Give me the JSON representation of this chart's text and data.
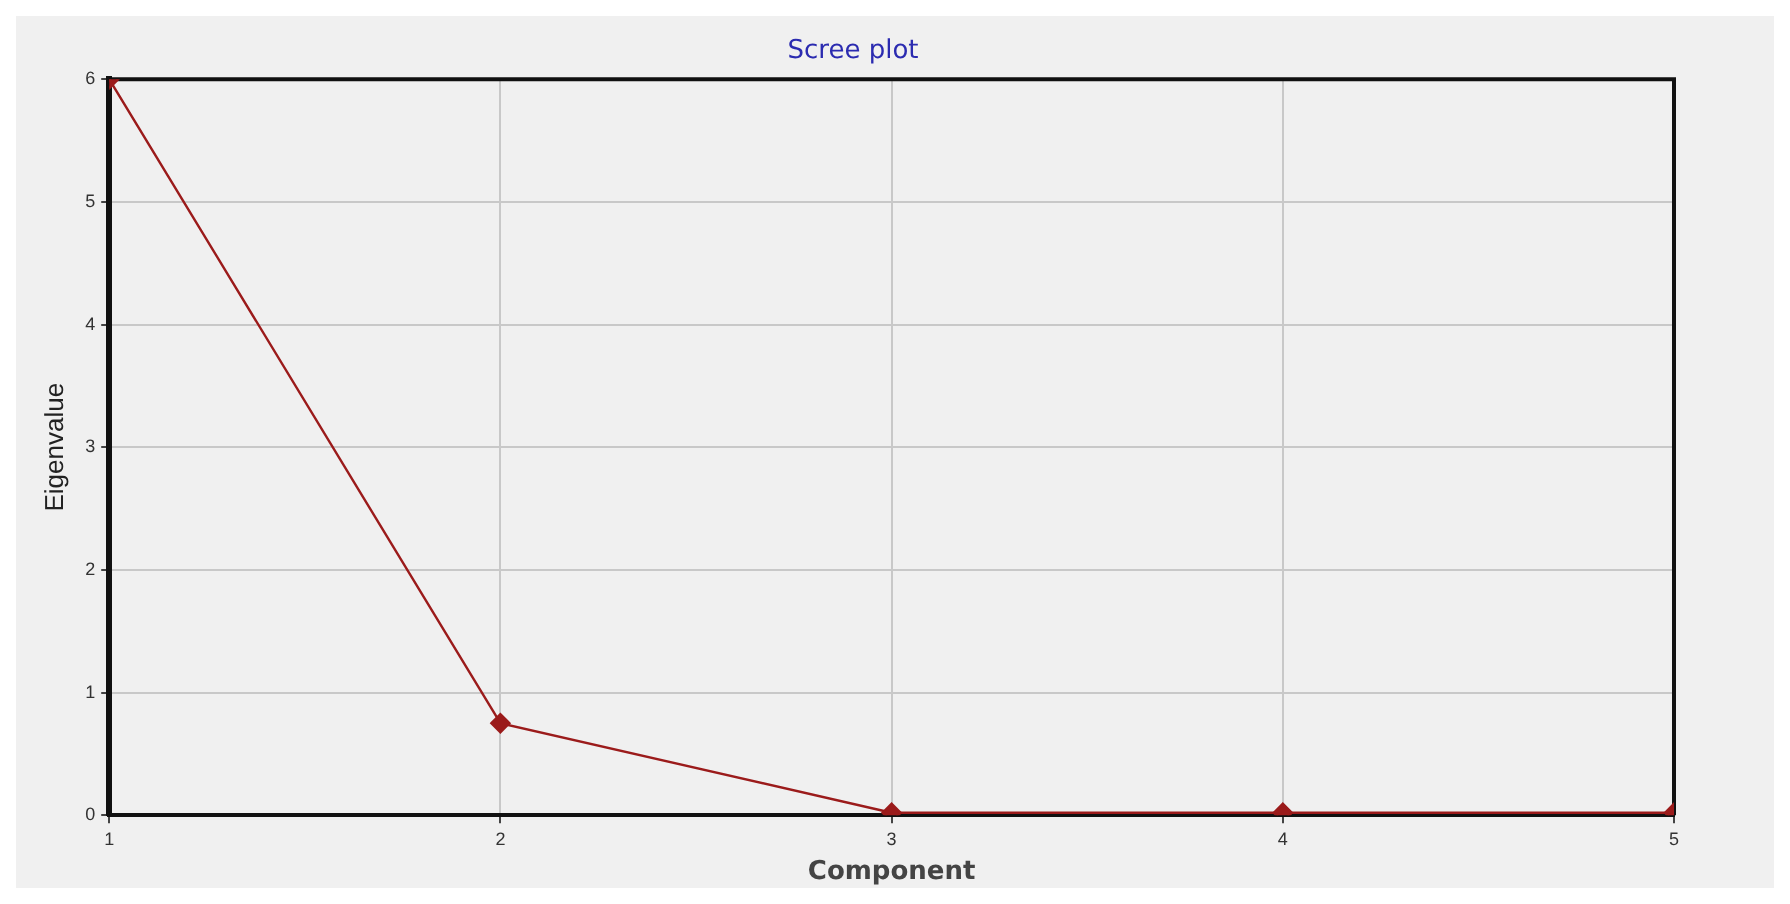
{
  "chart_data": {
    "type": "line",
    "title": "Scree plot",
    "xlabel": "Component",
    "ylabel": "Eigenvalue",
    "x": [
      1,
      2,
      3,
      4,
      5
    ],
    "series": [
      {
        "color": "#9b1b1b",
        "values": [
          6,
          0.75,
          0.02,
          0.02,
          0.02
        ]
      }
    ],
    "xlim": [
      1,
      5
    ],
    "xticks": [
      1,
      2,
      3,
      4,
      5
    ],
    "ylim": [
      0,
      6
    ],
    "yticks": [
      0,
      1,
      2,
      3,
      4,
      5,
      6
    ],
    "grid": true,
    "legend": false,
    "marker": "diamond",
    "line_style": "solid"
  }
}
